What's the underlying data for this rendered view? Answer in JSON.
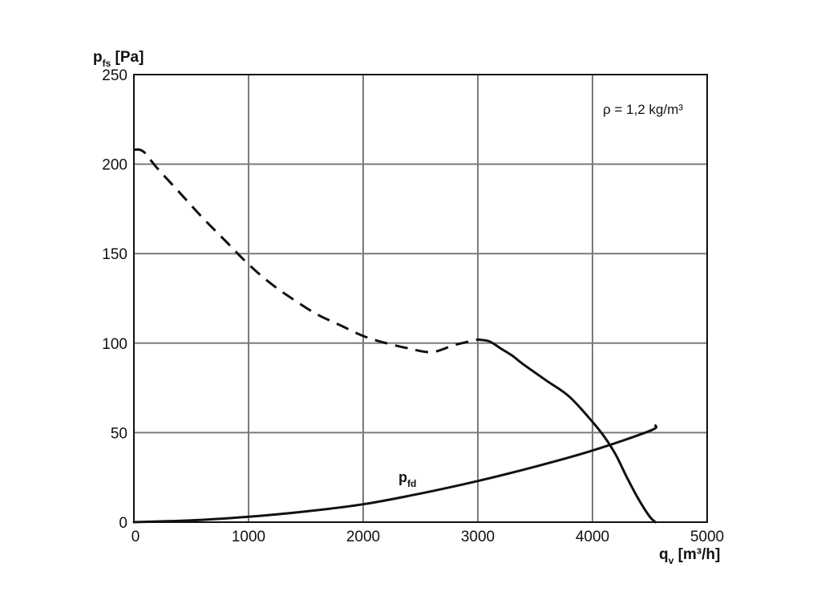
{
  "chart_data": {
    "type": "line",
    "xlabel": {
      "main": "q",
      "sub": "v",
      "unit": " [m³/h]"
    },
    "ylabel": {
      "main": "p",
      "sub": "fs",
      "unit": " [Pa]"
    },
    "annotation": "ρ = 1,2 kg/m³",
    "xlim": [
      0,
      5000
    ],
    "ylim": [
      0,
      250
    ],
    "x_ticks": [
      "0",
      "1000",
      "2000",
      "3000",
      "4000",
      "5000"
    ],
    "y_ticks": [
      "0",
      "50",
      "100",
      "150",
      "200",
      "250"
    ],
    "grid": true,
    "colors": {
      "grid": "#7a7a7a",
      "axes": "#111111",
      "curve": "#111111"
    },
    "series": [
      {
        "style": "dashed",
        "x": [
          0,
          50,
          100,
          200,
          400,
          600,
          800,
          1000,
          1200,
          1400,
          1600,
          1800,
          2000,
          2200,
          2400,
          2600,
          2800,
          3000
        ],
        "y": [
          208,
          208,
          206,
          198,
          184,
          170,
          157,
          144,
          133,
          124,
          116,
          110,
          104,
          100,
          97,
          95,
          99,
          102
        ]
      },
      {
        "style": "solid",
        "x": [
          3000,
          3100,
          3200,
          3300,
          3400,
          3600,
          3800,
          4000,
          4100,
          4200,
          4300,
          4400,
          4500,
          4550
        ],
        "y": [
          102,
          101,
          97,
          93,
          88,
          79,
          70,
          56,
          48,
          38,
          25,
          13,
          3,
          0
        ]
      },
      {
        "name": {
          "main": "p",
          "sub": "fd"
        },
        "style": "solid",
        "x": [
          0,
          500,
          1000,
          1500,
          2000,
          2500,
          3000,
          3500,
          4000,
          4500,
          4550
        ],
        "y": [
          0,
          1,
          3,
          6,
          10,
          16,
          23,
          31,
          40,
          51,
          54
        ]
      }
    ]
  }
}
